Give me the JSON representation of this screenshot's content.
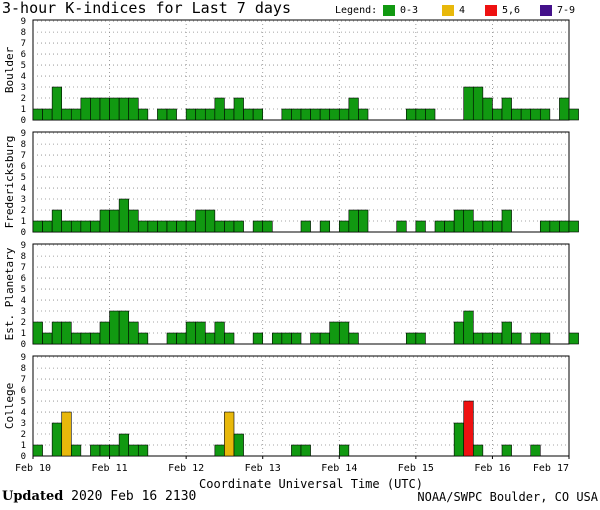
{
  "title": "3-hour K-indices for Last 7 days",
  "legend": {
    "label": "Legend:",
    "items": [
      {
        "text": "0-3",
        "color": "#119911"
      },
      {
        "text": "4",
        "color": "#e8b80b"
      },
      {
        "text": "5,6",
        "color": "#ee1111"
      },
      {
        "text": "7-9",
        "color": "#44118a"
      }
    ]
  },
  "footer": {
    "updated_label": "Updated",
    "updated_value": "2020 Feb 16 2130",
    "credit": "NOAA/SWPC Boulder, CO USA"
  },
  "chart_data": {
    "type": "bar",
    "xlabel": "Coordinate Universal Time (UTC)",
    "x_ticks": [
      "Feb 10",
      "Feb 11",
      "Feb 12",
      "Feb 13",
      "Feb 14",
      "Feb 15",
      "Feb 16",
      "Feb 17"
    ],
    "y_ticks": [
      "0",
      "1",
      "2",
      "3",
      "4",
      "5",
      "6",
      "7",
      "8",
      "9"
    ],
    "ylim": [
      0,
      9
    ],
    "interval_hours": 3,
    "start": "Feb 10 00 UTC",
    "end": "Feb 17 00 UTC",
    "color_scale": {
      "0-3": "#119911",
      "4": "#e8b80b",
      "5,6": "#ee1111",
      "7-9": "#44118a"
    },
    "panels": [
      {
        "name": "Boulder",
        "values": [
          1,
          1,
          3,
          1,
          1,
          2,
          2,
          2,
          2,
          2,
          2,
          1,
          0,
          1,
          1,
          0,
          1,
          1,
          1,
          2,
          1,
          2,
          1,
          1,
          0,
          0,
          1,
          1,
          1,
          1,
          1,
          1,
          1,
          2,
          1,
          0,
          0,
          0,
          0,
          1,
          1,
          1,
          0,
          0,
          0,
          3,
          3,
          2,
          1,
          2,
          1,
          1,
          1,
          1,
          0,
          2,
          1,
          0
        ]
      },
      {
        "name": "Fredericksburg",
        "values": [
          1,
          1,
          2,
          1,
          1,
          1,
          1,
          2,
          2,
          3,
          2,
          1,
          1,
          1,
          1,
          1,
          1,
          2,
          2,
          1,
          1,
          1,
          0,
          1,
          1,
          0,
          0,
          0,
          1,
          0,
          1,
          0,
          1,
          2,
          2,
          0,
          0,
          0,
          1,
          0,
          1,
          0,
          1,
          1,
          2,
          2,
          1,
          1,
          1,
          2,
          0,
          0,
          0,
          1,
          1,
          1,
          1,
          0
        ]
      },
      {
        "name": "Est. Planetary",
        "values": [
          2,
          1,
          2,
          2,
          1,
          1,
          1,
          2,
          3,
          3,
          2,
          1,
          0,
          0,
          1,
          1,
          2,
          2,
          1,
          2,
          1,
          0,
          0,
          1,
          0,
          1,
          1,
          1,
          0,
          1,
          1,
          2,
          2,
          1,
          0,
          0,
          0,
          0,
          0,
          1,
          1,
          0,
          0,
          0,
          2,
          3,
          1,
          1,
          1,
          2,
          1,
          0,
          1,
          1,
          0,
          0,
          1,
          0
        ]
      },
      {
        "name": "College",
        "values": [
          1,
          0,
          3,
          4,
          1,
          0,
          1,
          1,
          1,
          2,
          1,
          1,
          0,
          0,
          0,
          0,
          0,
          0,
          0,
          1,
          4,
          2,
          0,
          0,
          0,
          0,
          0,
          1,
          1,
          0,
          0,
          0,
          1,
          0,
          0,
          0,
          0,
          0,
          0,
          0,
          0,
          0,
          0,
          0,
          3,
          5,
          1,
          0,
          0,
          1,
          0,
          0,
          1,
          0,
          0,
          0,
          0,
          0
        ]
      }
    ]
  }
}
